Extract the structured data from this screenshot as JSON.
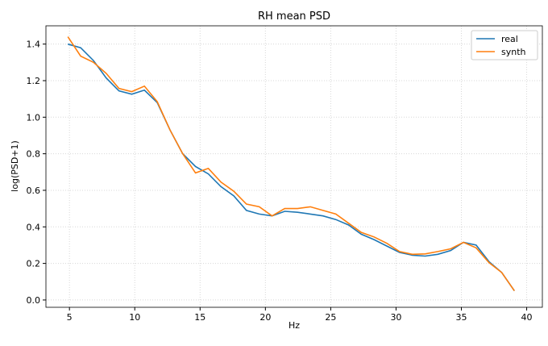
{
  "chart_data": {
    "type": "line",
    "title": "RH mean PSD",
    "xlabel": "Hz",
    "ylabel": "log(PSD+1)",
    "xlim": [
      3.2,
      41.2
    ],
    "ylim": [
      -0.04,
      1.5
    ],
    "xticks": [
      5,
      10,
      15,
      20,
      25,
      30,
      35,
      40
    ],
    "xtick_labels": [
      "5",
      "10",
      "15",
      "20",
      "25",
      "30",
      "35",
      "40"
    ],
    "yticks": [
      0.0,
      0.2,
      0.4,
      0.6,
      0.8,
      1.0,
      1.2,
      1.4
    ],
    "ytick_labels": [
      "0.0",
      "0.2",
      "0.4",
      "0.6",
      "0.8",
      "1.0",
      "1.2",
      "1.4"
    ],
    "grid": true,
    "legend_position": "top-right",
    "x": [
      4.88,
      5.86,
      6.84,
      7.81,
      8.79,
      9.77,
      10.74,
      11.72,
      12.7,
      13.67,
      14.65,
      15.63,
      16.6,
      17.58,
      18.55,
      19.53,
      20.51,
      21.48,
      22.46,
      23.44,
      24.41,
      25.39,
      26.37,
      27.34,
      28.32,
      29.3,
      30.27,
      31.25,
      32.23,
      33.2,
      34.18,
      35.16,
      36.13,
      37.11,
      38.09,
      39.06
    ],
    "series": [
      {
        "name": "real",
        "color": "#1f77b4",
        "values": [
          1.4,
          1.38,
          1.31,
          1.215,
          1.144,
          1.126,
          1.148,
          1.08,
          0.93,
          0.8,
          0.73,
          0.69,
          0.62,
          0.57,
          0.49,
          0.47,
          0.46,
          0.485,
          0.48,
          0.47,
          0.46,
          0.44,
          0.41,
          0.36,
          0.33,
          0.295,
          0.26,
          0.245,
          0.24,
          0.25,
          0.27,
          0.315,
          0.3,
          0.21,
          0.15,
          0.05
        ]
      },
      {
        "name": "synth",
        "color": "#ff7f0e",
        "values": [
          1.44,
          1.334,
          1.3,
          1.24,
          1.157,
          1.14,
          1.17,
          1.085,
          0.93,
          0.8,
          0.695,
          0.72,
          0.645,
          0.595,
          0.525,
          0.51,
          0.46,
          0.5,
          0.5,
          0.51,
          0.49,
          0.47,
          0.42,
          0.37,
          0.345,
          0.31,
          0.265,
          0.25,
          0.252,
          0.265,
          0.28,
          0.315,
          0.285,
          0.205,
          0.15,
          0.05
        ]
      }
    ]
  }
}
